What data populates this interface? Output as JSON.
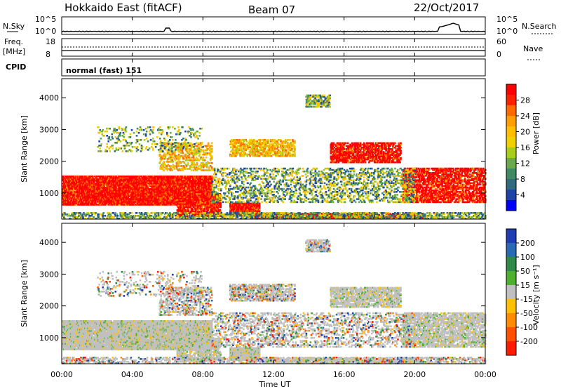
{
  "header": {
    "station": "Hokkaido East (fitACF)",
    "beam": "Beam 07",
    "date": "22/Oct/2017"
  },
  "top_panels": {
    "nsky_label": "N.Sky",
    "nsearch_label": "N.Search",
    "noise_ticks": [
      "10^5",
      "10^0"
    ],
    "freq_label": "Freq.",
    "freq_unit": "[MHz]",
    "freq_ticks": [
      "18",
      "8"
    ],
    "nave_label": "Nave",
    "nave_ticks": [
      "60",
      "0"
    ],
    "cpid_label": "CPID",
    "cpid_value": "normal (fast) 151"
  },
  "chart_data": [
    {
      "type": "heatmap",
      "quantity": "Power",
      "ylabel": "Slant Range [km]",
      "yticks": [
        1000,
        2000,
        3000,
        4000
      ],
      "ylim": [
        180,
        4600
      ],
      "colorbar": {
        "label": "Power [dB]",
        "ticks": [
          "28",
          "24",
          "20",
          "16",
          "12",
          "8",
          "4"
        ],
        "colors": [
          "#ff0000",
          "#ff2000",
          "#ff6a00",
          "#ff9e00",
          "#ffbf00",
          "#f0d000",
          "#a8cc1a",
          "#6aaa4a",
          "#3f8a60",
          "#2f6a80",
          "#1f44a8",
          "#0000ff"
        ]
      }
    },
    {
      "type": "heatmap",
      "quantity": "Velocity",
      "ylabel": "Slant Range [km]",
      "yticks": [
        1000,
        2000,
        3000,
        4000
      ],
      "ylim": [
        180,
        4600
      ],
      "colorbar": {
        "label": "Velocity [m s⁻¹]",
        "ticks": [
          "200",
          "100",
          "50",
          "15",
          "-15",
          "-50",
          "-100",
          "-200"
        ],
        "colors": [
          "#1e3cb4",
          "#2a6ab4",
          "#2f8a4a",
          "#4fb030",
          "#c0c0c0",
          "#ffc000",
          "#ff8c00",
          "#ff5000",
          "#ff1a00"
        ]
      }
    }
  ],
  "time_axis": {
    "label": "Time UT",
    "ticks": [
      "00:00",
      "04:00",
      "08:00",
      "12:00",
      "16:00",
      "20:00",
      "00:00"
    ]
  }
}
